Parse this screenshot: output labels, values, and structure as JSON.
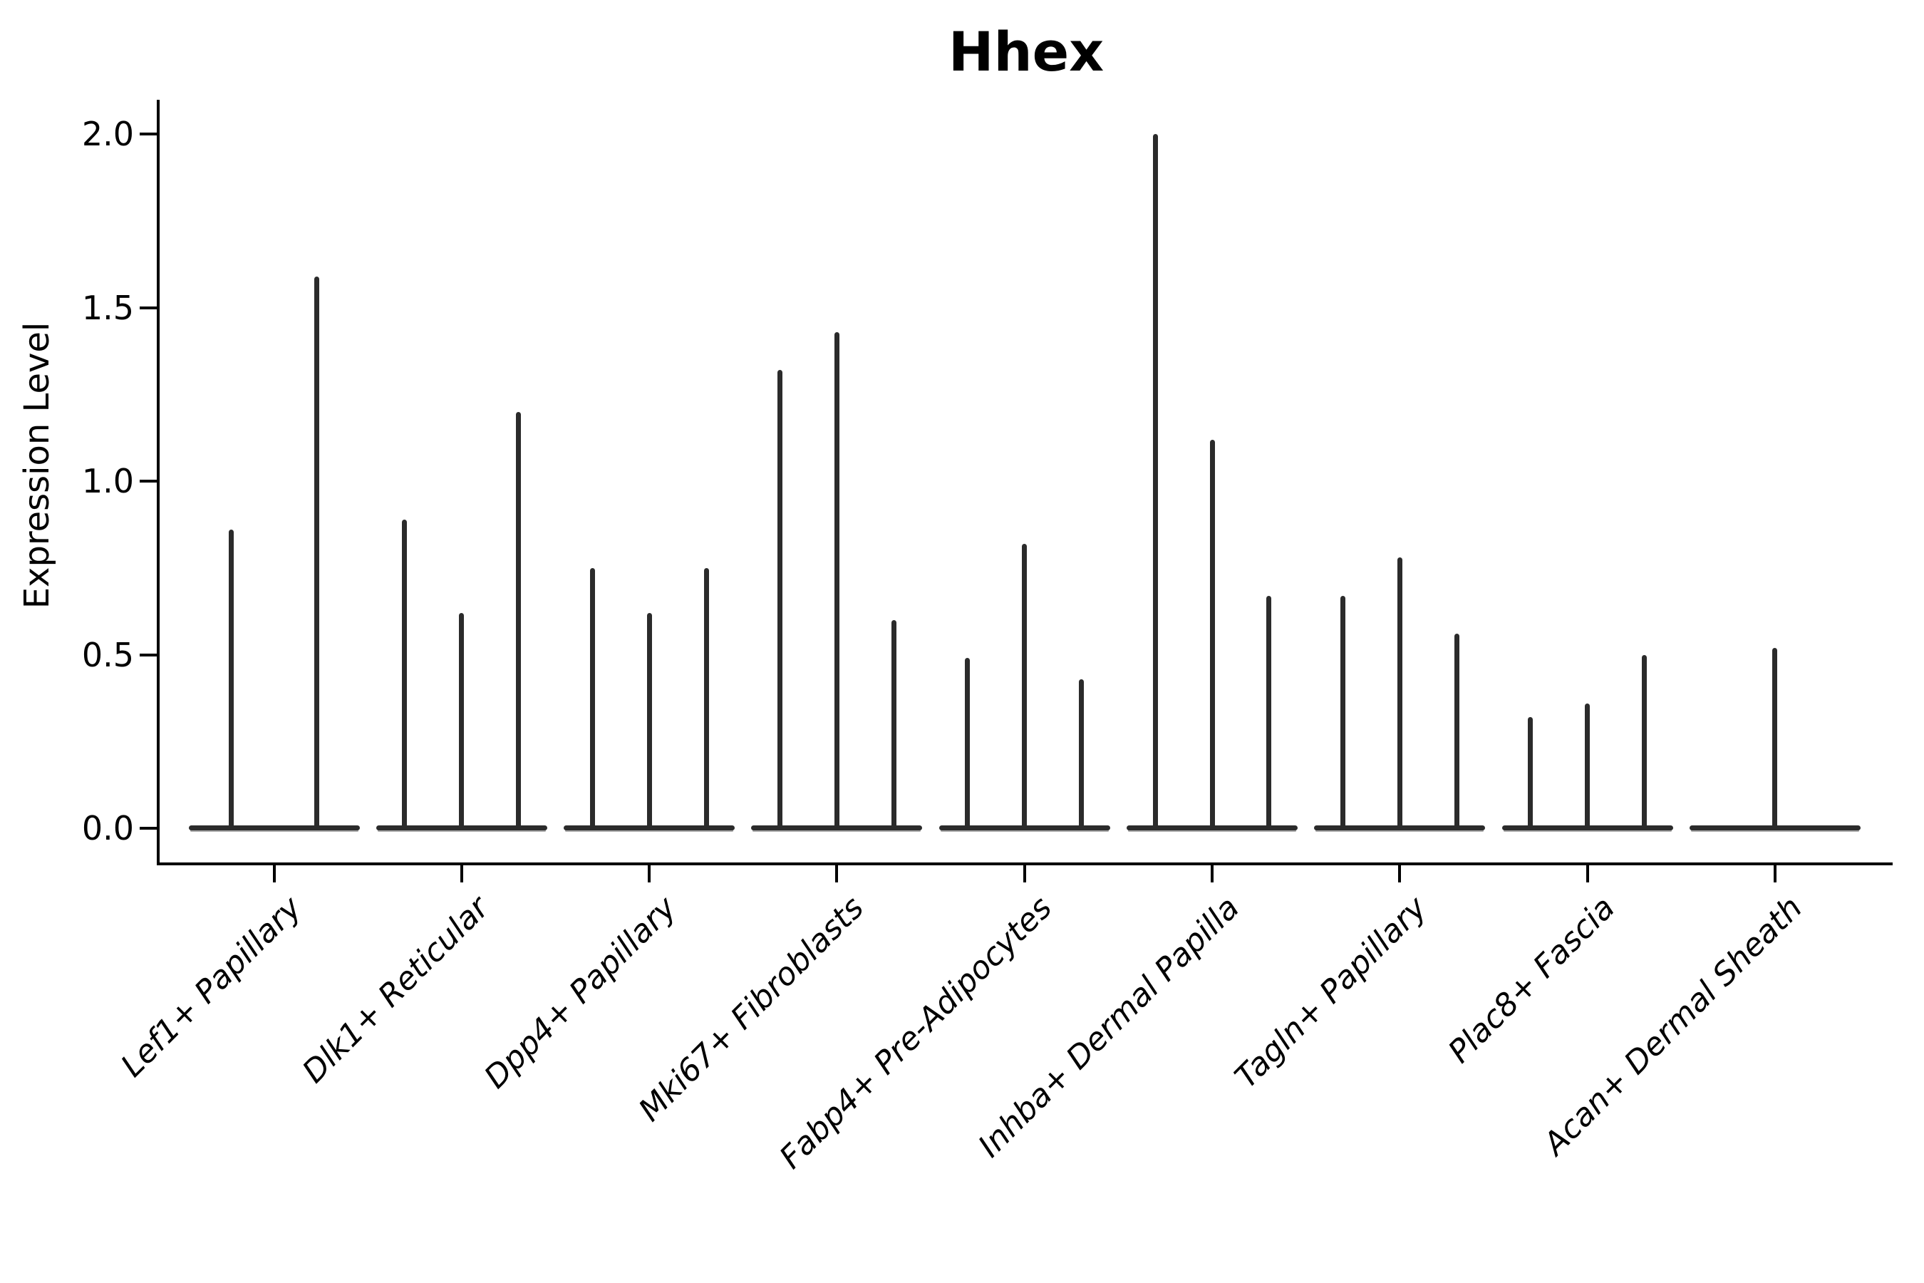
{
  "figure": {
    "title": "Hhex",
    "ylabel": "Expression Level",
    "background_color": "#ffffff",
    "violin_color": "#2b2b2b",
    "axis_color": "#000000"
  },
  "chart_data": {
    "type": "violin",
    "title": "Hhex",
    "xlabel": "",
    "ylabel": "Expression Level",
    "ylim": [
      -0.1,
      2.09
    ],
    "yticks": [
      0.0,
      0.5,
      1.0,
      1.5,
      2.0
    ],
    "ytick_labels": [
      "0.0",
      "0.5",
      "1.0",
      "1.5",
      "2.0"
    ],
    "grid": false,
    "legend": null,
    "categories": [
      "Lef1+ Papillary",
      "Dlk1+ Reticular",
      "Dpp4+ Papillary",
      "Mki67+ Fibroblasts",
      "Fabp4+ Pre-Adipocytes",
      "Inhba+ Dermal Papilla",
      "Tagln+ Papillary",
      "Plac8+ Fascia",
      "Acan+ Dermal Sheath"
    ],
    "groups": [
      {
        "category": "Lef1+ Papillary",
        "violins": [
          {
            "pos": 0.25,
            "max": 0.86
          },
          {
            "pos": 0.75,
            "max": 1.59
          }
        ]
      },
      {
        "category": "Dlk1+ Reticular",
        "violins": [
          {
            "pos": 0.167,
            "max": 0.89
          },
          {
            "pos": 0.5,
            "max": 0.62
          },
          {
            "pos": 0.833,
            "max": 1.2
          }
        ]
      },
      {
        "category": "Dpp4+ Papillary",
        "violins": [
          {
            "pos": 0.167,
            "max": 0.75
          },
          {
            "pos": 0.5,
            "max": 0.62
          },
          {
            "pos": 0.833,
            "max": 0.75
          }
        ]
      },
      {
        "category": "Mki67+ Fibroblasts",
        "violins": [
          {
            "pos": 0.167,
            "max": 1.32
          },
          {
            "pos": 0.5,
            "max": 1.43
          },
          {
            "pos": 0.833,
            "max": 0.6
          }
        ]
      },
      {
        "category": "Fabp4+ Pre-Adipocytes",
        "violins": [
          {
            "pos": 0.167,
            "max": 0.49
          },
          {
            "pos": 0.5,
            "max": 0.82
          },
          {
            "pos": 0.833,
            "max": 0.43
          }
        ]
      },
      {
        "category": "Inhba+ Dermal Papilla",
        "violins": [
          {
            "pos": 0.167,
            "max": 2.0
          },
          {
            "pos": 0.5,
            "max": 1.12
          },
          {
            "pos": 0.833,
            "max": 0.67
          }
        ]
      },
      {
        "category": "Tagln+ Papillary",
        "violins": [
          {
            "pos": 0.167,
            "max": 0.67
          },
          {
            "pos": 0.5,
            "max": 0.78
          },
          {
            "pos": 0.833,
            "max": 0.56
          }
        ]
      },
      {
        "category": "Plac8+ Fascia",
        "violins": [
          {
            "pos": 0.167,
            "max": 0.32
          },
          {
            "pos": 0.5,
            "max": 0.36
          },
          {
            "pos": 0.833,
            "max": 0.5
          }
        ]
      },
      {
        "category": "Acan+ Dermal Sheath",
        "violins": [
          {
            "pos": 0.5,
            "max": 0.52
          }
        ]
      }
    ]
  }
}
